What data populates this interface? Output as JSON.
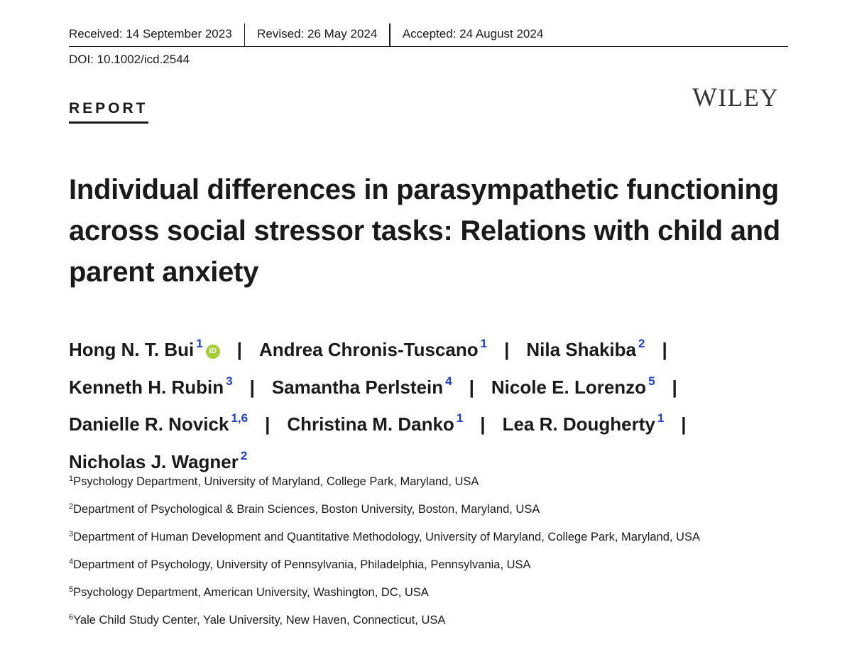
{
  "header": {
    "received": "Received: 14 September 2023",
    "revised": "Revised: 26 May 2024",
    "accepted": "Accepted: 24 August 2024",
    "doi": "DOI: 10.1002/icd.2544"
  },
  "section_label": "REPORT",
  "publisher_logo": "WILEY",
  "title": "Individual differences in parasympathetic functioning across social stressor tasks: Relations with child and parent anxiety",
  "authors": [
    {
      "name": "Hong N. T. Bui",
      "sup": "1",
      "orcid": "iD"
    },
    {
      "name": "Andrea Chronis-Tuscano",
      "sup": "1"
    },
    {
      "name": "Nila Shakiba",
      "sup": "2"
    },
    {
      "name": "Kenneth H. Rubin",
      "sup": "3"
    },
    {
      "name": "Samantha Perlstein",
      "sup": "4"
    },
    {
      "name": "Nicole E. Lorenzo",
      "sup": "5"
    },
    {
      "name": "Danielle R. Novick",
      "sup": "1,6"
    },
    {
      "name": "Christina M. Danko",
      "sup": "1"
    },
    {
      "name": "Lea R. Dougherty",
      "sup": "1"
    },
    {
      "name": "Nicholas J. Wagner",
      "sup": "2"
    }
  ],
  "separator": "|",
  "affiliations": [
    {
      "num": "1",
      "text": "Psychology Department, University of Maryland, College Park, Maryland, USA"
    },
    {
      "num": "2",
      "text": "Department of Psychological & Brain Sciences, Boston University, Boston, Maryland, USA"
    },
    {
      "num": "3",
      "text": "Department of Human Development and Quantitative Methodology, University of Maryland, College Park, Maryland, USA"
    },
    {
      "num": "4",
      "text": "Department of Psychology, University of Pennsylvania, Philadelphia, Pennsylvania, USA"
    },
    {
      "num": "5",
      "text": "Psychology Department, American University, Washington, DC, USA"
    },
    {
      "num": "6",
      "text": "Yale Child Study Center, Yale University, New Haven, Connecticut, USA"
    }
  ]
}
